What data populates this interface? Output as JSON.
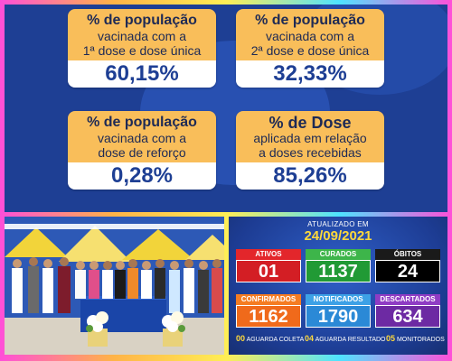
{
  "top_cards": [
    {
      "heading": "% de população",
      "line1": "vacinada com a",
      "line2": "1ª dose e dose única",
      "value": "60,15%"
    },
    {
      "heading": "% de população",
      "line1": "vacinada com a",
      "line2": "2ª dose e dose única",
      "value": "32,33%"
    },
    {
      "heading": "% de população",
      "line1": "vacinada com a",
      "line2": "dose de reforço",
      "value": "0,28%"
    },
    {
      "heading": "% de Dose",
      "line1": "aplicada em relação",
      "line2": "a doses recebidas",
      "value": "85,26%"
    }
  ],
  "board": {
    "updated_label": "ATUALIZADO EM",
    "date": "24/09/2021",
    "tiles": [
      {
        "label": "ATIVOS",
        "value": "01"
      },
      {
        "label": "CURADOS",
        "value": "1137"
      },
      {
        "label": "ÓBITOS",
        "value": "24"
      },
      {
        "label": "CONFIRMADOS",
        "value": "1162"
      },
      {
        "label": "NOTIFICADOS",
        "value": "1790"
      },
      {
        "label": "DESCARTADOS",
        "value": "634"
      }
    ],
    "footer": [
      {
        "count": "00",
        "text": "AGUARDA COLETA"
      },
      {
        "count": "04",
        "text": "AGUARDA RESULTADO"
      },
      {
        "count": "05",
        "text": "MONITORADOS"
      }
    ]
  },
  "colors": {
    "panel_blue": "#1e3f94",
    "card_orange": "#f9be5a",
    "value_blue": "#1e3f94",
    "date_yellow": "#ffd93b"
  }
}
